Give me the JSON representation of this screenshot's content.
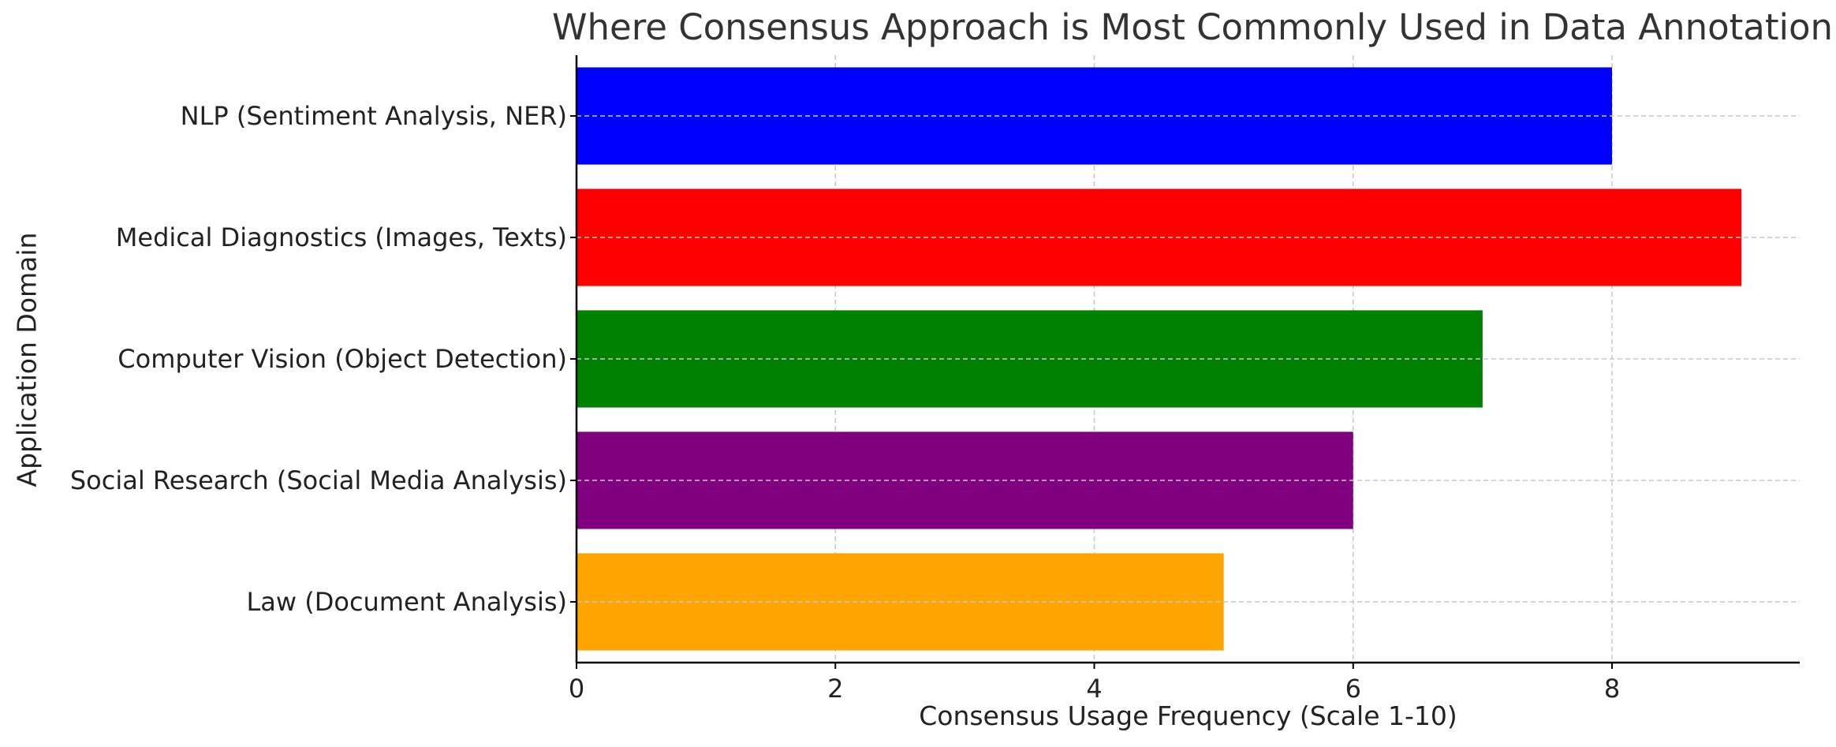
{
  "chart_data": {
    "type": "bar",
    "orientation": "horizontal",
    "title": "Where Consensus Approach is Most Commonly Used in Data Annotation",
    "xlabel": "Consensus Usage Frequency (Scale 1-10)",
    "ylabel": "Application Domain",
    "categories": [
      "NLP (Sentiment Analysis, NER)",
      "Medical Diagnostics (Images, Texts)",
      "Computer Vision (Object Detection)",
      "Social Research (Social Media Analysis)",
      "Law (Document Analysis)"
    ],
    "values": [
      8,
      9,
      7,
      6,
      5
    ],
    "colors": [
      "#0000ff",
      "#ff0000",
      "#008000",
      "#800080",
      "#ffa500"
    ],
    "xlim": [
      0,
      9.45
    ],
    "xticks": [
      0,
      2,
      4,
      6,
      8
    ],
    "grid": true
  }
}
